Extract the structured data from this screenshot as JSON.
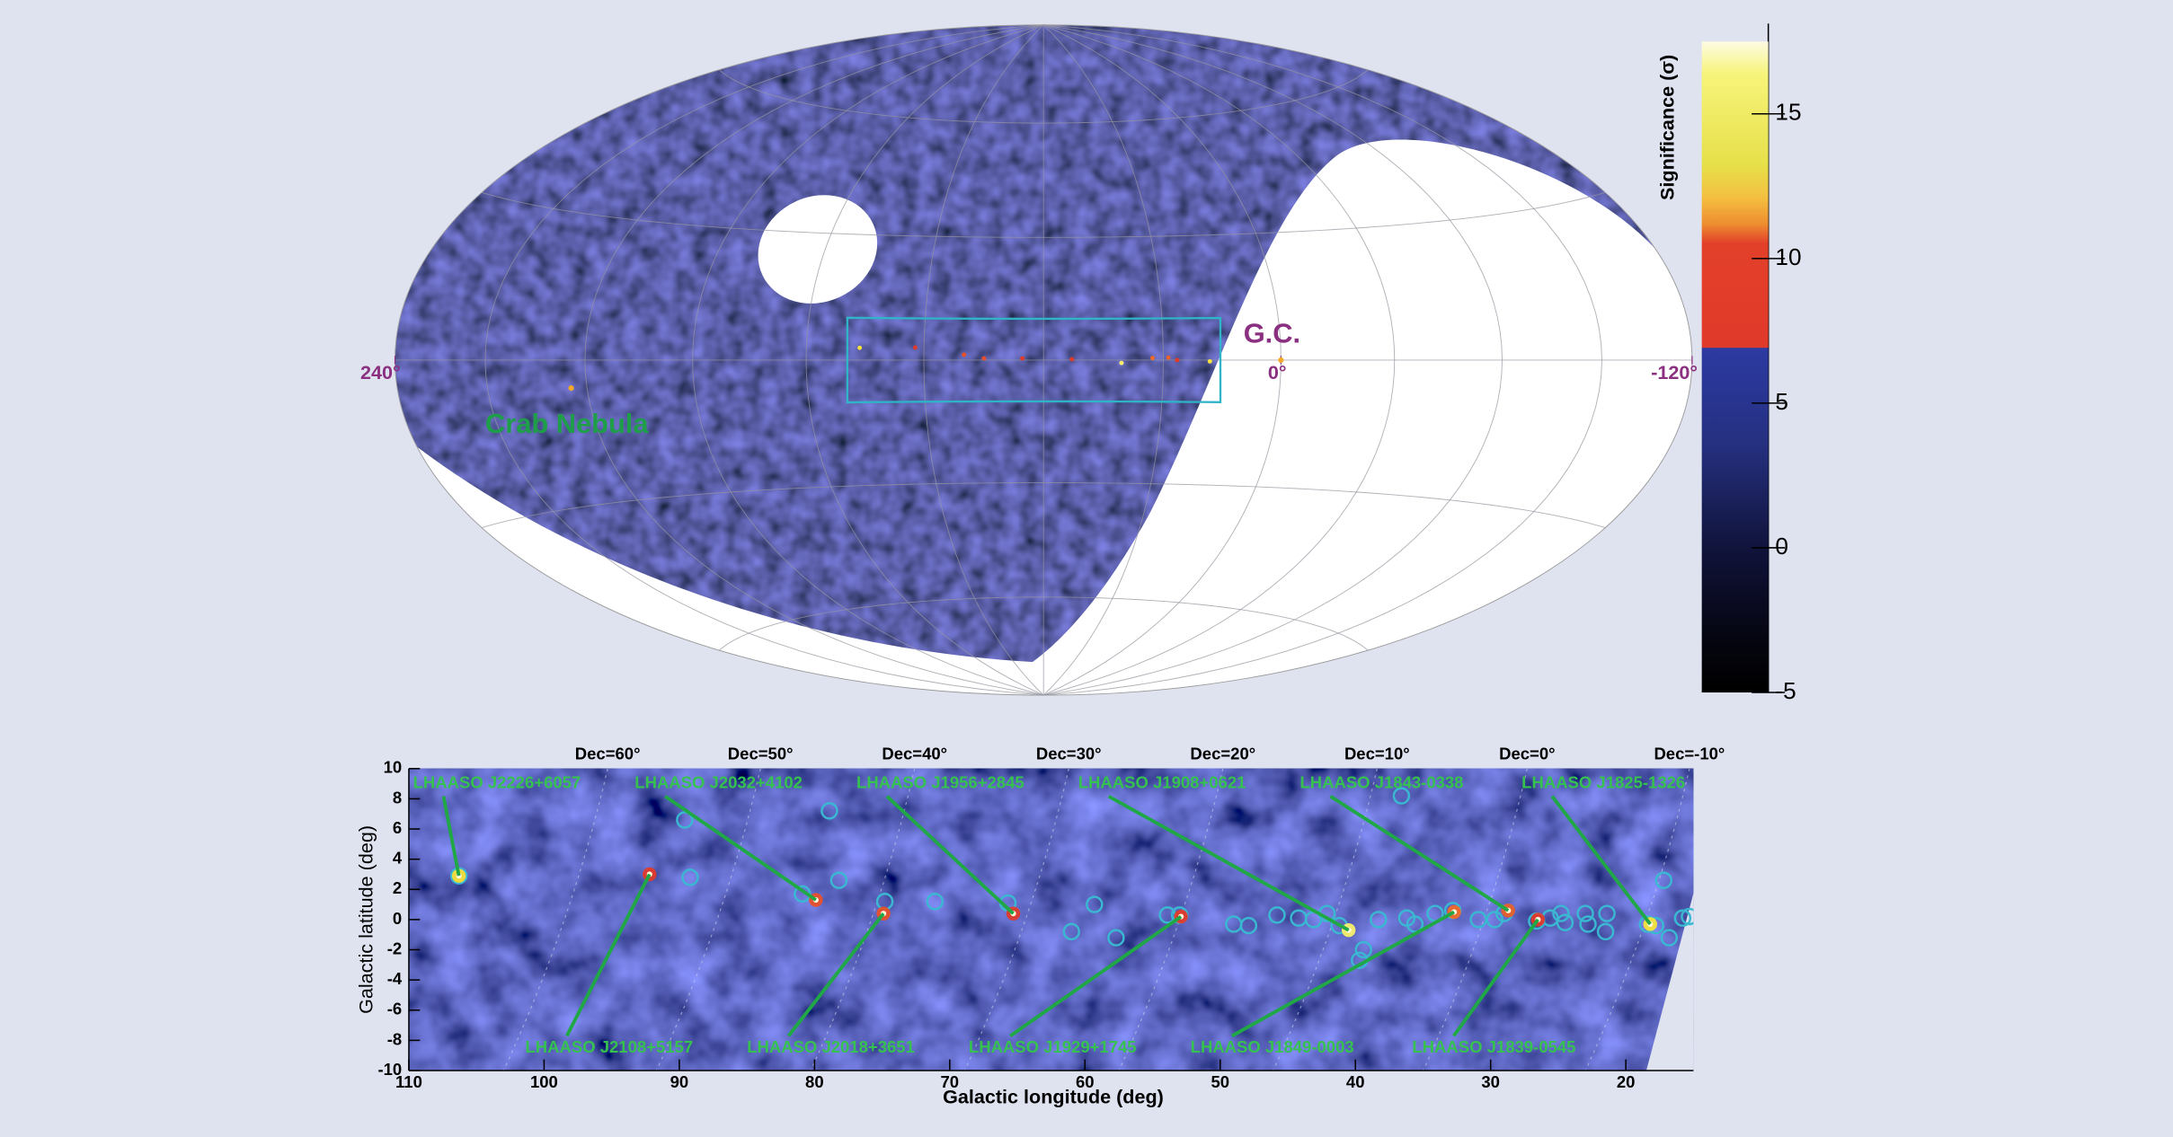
{
  "chart_data": [
    {
      "type": "skymap",
      "xlim": [
        240,
        -120
      ],
      "xticks": [
        {
          "value": 240,
          "label": "240°"
        },
        {
          "value": 0,
          "label": "0°"
        },
        {
          "value": -120,
          "label": "-120°"
        }
      ],
      "annotations": [
        {
          "text": "Crab Nebula",
          "x": 184.6,
          "y": -5.8
        },
        {
          "text": "G.C.",
          "x": 0,
          "y": 0
        }
      ],
      "colorbar": {
        "label": "Significance (σ)",
        "lim": [
          -5,
          17.5
        ],
        "ticks": [
          -5,
          0,
          5,
          10,
          15
        ]
      }
    },
    {
      "type": "scatter",
      "xlabel": "Galactic longitude (deg)",
      "ylabel": "Galactic latitude (deg)",
      "xlim": [
        110,
        15
      ],
      "ylim": [
        -10,
        10
      ],
      "xticks": [
        110,
        100,
        90,
        80,
        70,
        60,
        50,
        40,
        30,
        20
      ],
      "yticks": [
        -10,
        -8,
        -6,
        -4,
        -2,
        0,
        2,
        4,
        6,
        8,
        10
      ],
      "dec_lines": [
        {
          "label": "Dec=60°",
          "x": 95.3
        },
        {
          "label": "Dec=50°",
          "x": 84.0
        },
        {
          "label": "Dec=40°",
          "x": 72.6
        },
        {
          "label": "Dec=30°",
          "x": 61.2
        },
        {
          "label": "Dec=20°",
          "x": 49.8
        },
        {
          "label": "Dec=10°",
          "x": 38.4
        },
        {
          "label": "Dec=0°",
          "x": 27.3
        },
        {
          "label": "Dec=-10°",
          "x": 15.3
        }
      ],
      "catalog": {
        "color": "#3ab8d2",
        "x": [
          89.6,
          78.9,
          89.2,
          78.2,
          80.9,
          74.8,
          71.1,
          65.7,
          59.3,
          61.0,
          57.7,
          53.9,
          53.0,
          49.0,
          47.9,
          45.8,
          44.2,
          43.1,
          42.1,
          41.2,
          39.4,
          39.7,
          38.3,
          36.6,
          36.2,
          35.6,
          34.1,
          32.8,
          30.9,
          29.7,
          29.0,
          26.6,
          25.6,
          24.8,
          24.5,
          23.0,
          22.8,
          21.4,
          21.5,
          18.4,
          17.2,
          16.8,
          15.8,
          15.3,
          106.3,
          17.8
        ],
        "y": [
          6.6,
          7.2,
          2.8,
          2.6,
          1.7,
          1.2,
          1.2,
          1.1,
          1.0,
          -0.8,
          -1.2,
          0.3,
          0.3,
          -0.3,
          -0.4,
          0.3,
          0.1,
          0,
          0.4,
          -0.4,
          -2.0,
          -2.7,
          0,
          8.2,
          0.1,
          -0.3,
          0.4,
          0.6,
          0,
          0,
          0.4,
          -0.1,
          0.1,
          0.4,
          -0.2,
          0.4,
          -0.3,
          0.4,
          -0.8,
          -0.3,
          2.6,
          -1.2,
          0.1,
          0.2,
          2.9,
          -0.4
        ]
      },
      "sources": [
        {
          "label": "LHAASO J2226+6057",
          "x": 106.3,
          "y": 2.9,
          "color": "#f5e23a"
        },
        {
          "label": "LHAASO J2108+5157",
          "x": 92.2,
          "y": 3.0,
          "color": "#e03a2a"
        },
        {
          "label": "LHAASO J2032+4102",
          "x": 79.9,
          "y": 1.3,
          "color": "#e8502a"
        },
        {
          "label": "LHAASO J2018+3651",
          "x": 74.9,
          "y": 0.4,
          "color": "#e8502a"
        },
        {
          "label": "LHAASO J1956+2845",
          "x": 65.3,
          "y": 0.4,
          "color": "#e03a2a"
        },
        {
          "label": "LHAASO J1929+1745",
          "x": 52.9,
          "y": 0.2,
          "color": "#e03a2a"
        },
        {
          "label": "LHAASO J1908+0621",
          "x": 40.5,
          "y": -0.7,
          "color": "#f7ef6a"
        },
        {
          "label": "LHAASO J1849-0003",
          "x": 32.7,
          "y": 0.5,
          "color": "#ee6a2a"
        },
        {
          "label": "LHAASO J1843-0338",
          "x": 28.7,
          "y": 0.6,
          "color": "#e8602a"
        },
        {
          "label": "LHAASO J1839-0545",
          "x": 26.5,
          "y": 0.0,
          "color": "#e03a2a"
        },
        {
          "label": "LHAASO J1825-1326",
          "x": 18.2,
          "y": -0.3,
          "color": "#f5e23a"
        }
      ]
    }
  ]
}
